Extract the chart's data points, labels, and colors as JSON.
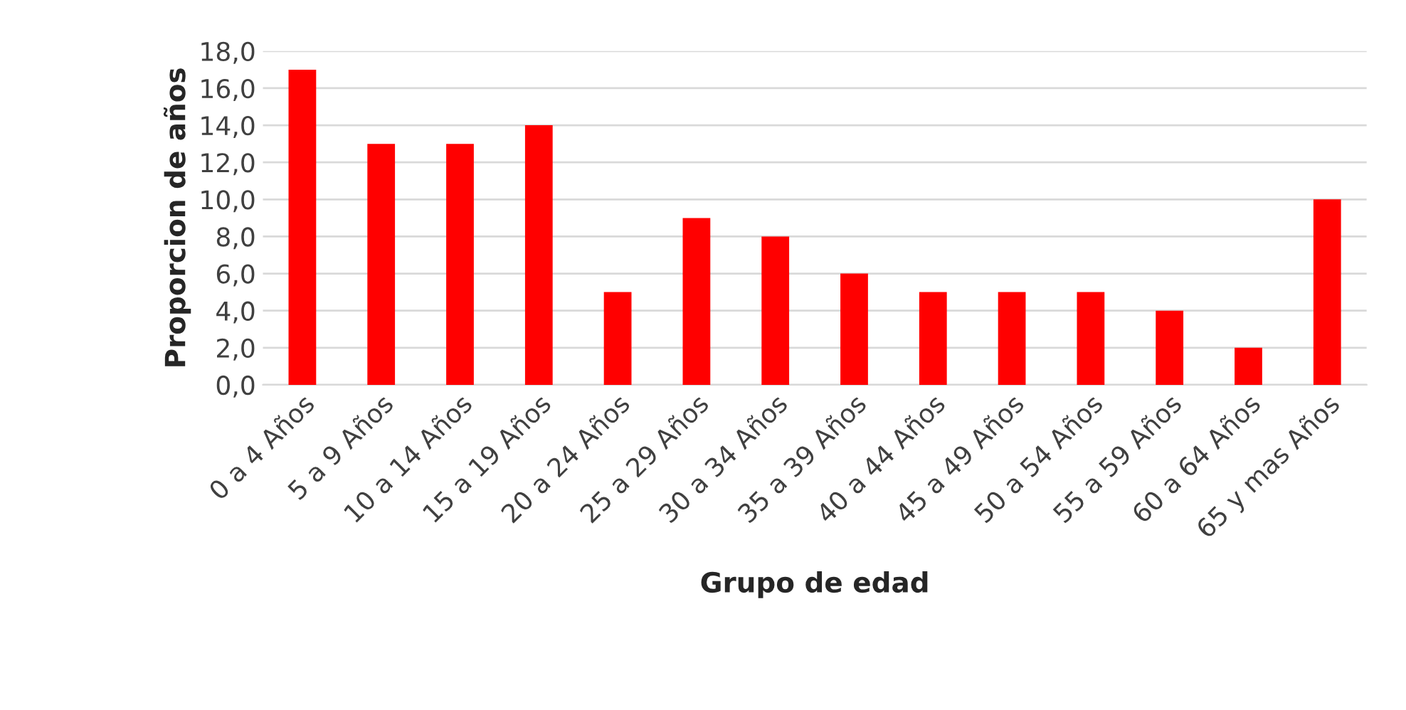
{
  "chart_data": {
    "type": "bar",
    "xlabel": "Grupo de edad",
    "ylabel": "Proporcion de años",
    "categories": [
      "0 a 4 Años",
      "5 a 9 Años",
      "10 a 14 Años",
      "15 a 19 Años",
      "20 a 24 Años",
      "25 a 29 Años",
      "30 a 34 Años",
      "35 a 39 Años",
      "40 a 44 Años",
      "45 a 49 Años",
      "50 a 54 Años",
      "55 a 59 Años",
      "60 a 64 Años",
      "65 y mas Años"
    ],
    "values": [
      17,
      13,
      13,
      14,
      5,
      9,
      8,
      6,
      5,
      5,
      5,
      4,
      2,
      10
    ],
    "color": "#ff0000",
    "ylim": [
      0,
      18
    ],
    "yticks": [
      {
        "value": 0,
        "label": "0,0"
      },
      {
        "value": 2,
        "label": "2,0"
      },
      {
        "value": 4,
        "label": "4,0"
      },
      {
        "value": 6,
        "label": "6,0"
      },
      {
        "value": 8,
        "label": "8,0"
      },
      {
        "value": 10,
        "label": "10,0"
      },
      {
        "value": 12,
        "label": "12,0"
      },
      {
        "value": 14,
        "label": "14,0"
      },
      {
        "value": 16,
        "label": "16,0"
      },
      {
        "value": 18,
        "label": "18,0"
      }
    ],
    "grid": "y"
  }
}
